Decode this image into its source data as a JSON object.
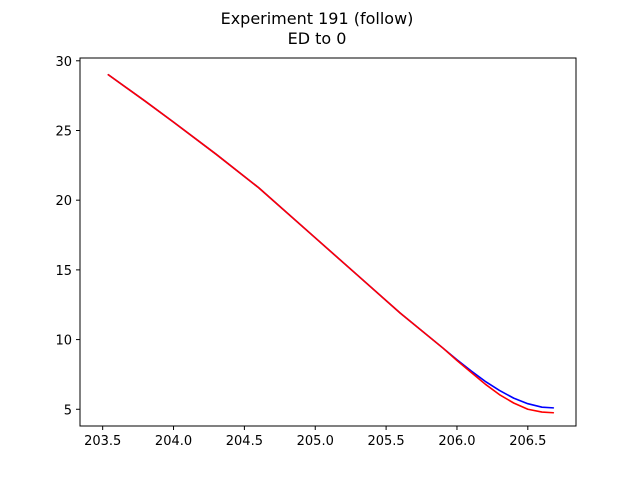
{
  "chart_data": {
    "type": "line",
    "title": "Experiment 191 (follow)",
    "subtitle": "ED to 0",
    "xlabel": "",
    "ylabel": "",
    "xlim": [
      203.34,
      206.84
    ],
    "ylim": [
      3.8,
      30.2
    ],
    "xticks": [
      203.5,
      204.0,
      204.5,
      205.0,
      205.5,
      206.0,
      206.5
    ],
    "xtick_labels": [
      "203.5",
      "204.0",
      "204.5",
      "205.0",
      "205.5",
      "206.0",
      "206.5"
    ],
    "yticks": [
      5,
      10,
      15,
      20,
      25,
      30
    ],
    "ytick_labels": [
      "5",
      "10",
      "15",
      "20",
      "25",
      "30"
    ],
    "grid": false,
    "series": [
      {
        "color": "#0000ff",
        "x": [
          203.54,
          203.8,
          204.0,
          204.3,
          204.6,
          205.0,
          205.3,
          205.6,
          205.9,
          206.0,
          206.1,
          206.2,
          206.3,
          206.4,
          206.5,
          206.6,
          206.68
        ],
        "y": [
          29.0,
          27.1,
          25.6,
          23.3,
          20.9,
          17.3,
          14.6,
          11.9,
          9.4,
          8.55,
          7.75,
          7.0,
          6.35,
          5.8,
          5.4,
          5.15,
          5.1
        ]
      },
      {
        "color": "#ff0000",
        "x": [
          203.54,
          203.8,
          204.0,
          204.3,
          204.6,
          205.0,
          205.3,
          205.6,
          205.9,
          206.0,
          206.1,
          206.2,
          206.3,
          206.4,
          206.5,
          206.6,
          206.68
        ],
        "y": [
          29.0,
          27.1,
          25.6,
          23.3,
          20.9,
          17.3,
          14.6,
          11.9,
          9.4,
          8.5,
          7.65,
          6.8,
          6.05,
          5.45,
          5.0,
          4.8,
          4.75
        ]
      }
    ]
  }
}
